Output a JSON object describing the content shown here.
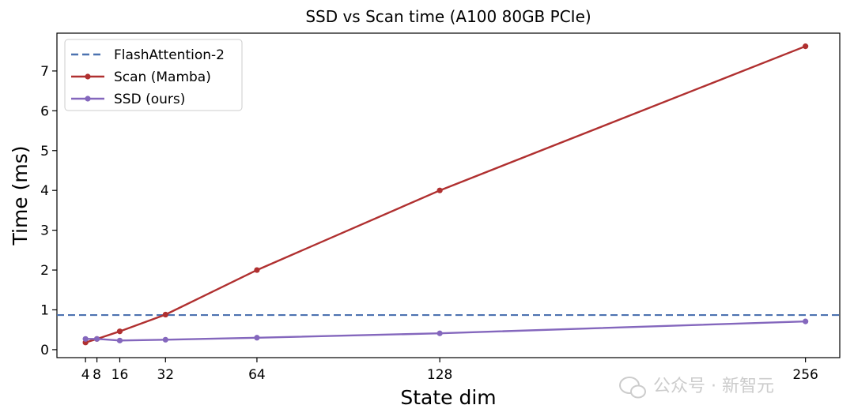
{
  "chart_data": {
    "type": "line",
    "title": "SSD vs Scan time (A100 80GB PCIe)",
    "xlabel": "State dim",
    "ylabel": "Time (ms)",
    "xlim": [
      -6,
      268
    ],
    "ylim": [
      -0.2,
      7.95
    ],
    "xticks": [
      4,
      8,
      16,
      32,
      64,
      128,
      256
    ],
    "xtick_labels": [
      "4",
      "8",
      "16",
      "32",
      "64",
      "128",
      "256"
    ],
    "yticks": [
      0,
      1,
      2,
      3,
      4,
      5,
      6,
      7
    ],
    "ytick_labels": [
      "0",
      "1",
      "2",
      "3",
      "4",
      "5",
      "6",
      "7"
    ],
    "grid": false,
    "legend_position": "top-left",
    "reference_line": {
      "name": "FlashAttention-2",
      "y": 0.87,
      "style": "dashed",
      "color": "#4c72b0"
    },
    "series": [
      {
        "name": "Scan (Mamba)",
        "color": "#b03030",
        "x": [
          4,
          8,
          16,
          32,
          64,
          128,
          256
        ],
        "values": [
          0.18,
          0.27,
          0.46,
          0.88,
          2.0,
          4.0,
          7.62
        ]
      },
      {
        "name": "SSD (ours)",
        "color": "#8467bd",
        "x": [
          4,
          8,
          16,
          32,
          64,
          128,
          256
        ],
        "values": [
          0.27,
          0.27,
          0.23,
          0.25,
          0.3,
          0.41,
          0.71
        ]
      }
    ]
  },
  "watermark": {
    "text": "公众号 · 新智元",
    "icon": "wechat-icon"
  }
}
